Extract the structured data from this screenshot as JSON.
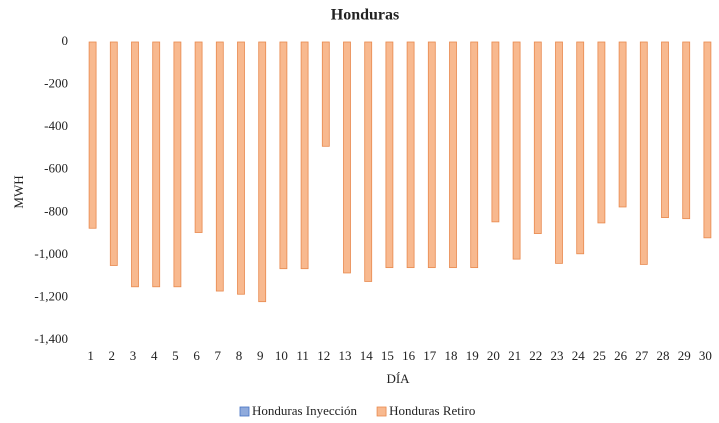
{
  "chart_data": {
    "type": "bar",
    "title": "Honduras",
    "x_label": "DÍA",
    "y_label": "MWH",
    "categories": [
      "1",
      "2",
      "3",
      "4",
      "5",
      "6",
      "7",
      "8",
      "9",
      "10",
      "11",
      "12",
      "13",
      "14",
      "15",
      "16",
      "17",
      "18",
      "19",
      "20",
      "21",
      "22",
      "23",
      "24",
      "25",
      "26",
      "27",
      "28",
      "29",
      "30"
    ],
    "series": [
      {
        "name": "Honduras Inyección",
        "color": "#8faadc",
        "stroke": "#4472c4",
        "values": [
          0,
          0,
          0,
          0,
          0,
          0,
          0,
          0,
          0,
          0,
          0,
          0,
          0,
          0,
          0,
          0,
          0,
          0,
          0,
          0,
          0,
          0,
          0,
          0,
          0,
          0,
          0,
          0,
          0,
          0
        ]
      },
      {
        "name": "Honduras Retiro",
        "color": "#f8b98f",
        "stroke": "#e8894e",
        "values": [
          -875,
          -1050,
          -1150,
          -1150,
          -1150,
          -895,
          -1170,
          -1185,
          -1220,
          -1065,
          -1065,
          -490,
          -1085,
          -1125,
          -1060,
          -1060,
          -1060,
          -1060,
          -1060,
          -845,
          -1020,
          -900,
          -1040,
          -995,
          -850,
          -775,
          -1045,
          -825,
          -830,
          -920
        ]
      }
    ],
    "ylim": [
      -1400,
      0
    ],
    "yticks": [
      0,
      -200,
      -400,
      -600,
      -800,
      {
        "value": -1000,
        "label": "-1,000"
      },
      {
        "value": -1200,
        "label": "-1,200"
      },
      {
        "value": -1400,
        "label": "-1,400"
      }
    ],
    "grid": false,
    "legend": "bottom"
  }
}
